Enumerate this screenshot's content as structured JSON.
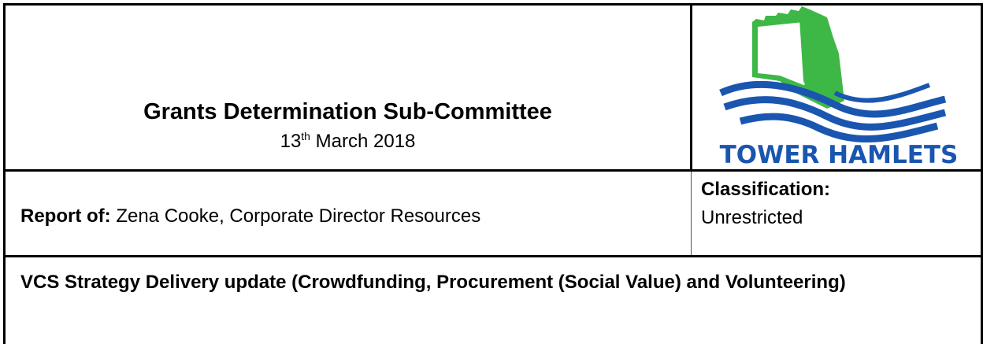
{
  "header": {
    "title": "Grants Determination Sub-Committee",
    "date": {
      "day": "13",
      "suffix": "th",
      "rest": "March 2018"
    },
    "logo_text": "TOWER HAMLETS"
  },
  "report": {
    "label": "Report of:",
    "author": "Zena Cooke, Corporate Director Resources"
  },
  "classification": {
    "label": "Classification:",
    "value": "Unrestricted"
  },
  "subject": "VCS Strategy Delivery update (Crowdfunding, Procurement (Social Value) and Volunteering)"
}
